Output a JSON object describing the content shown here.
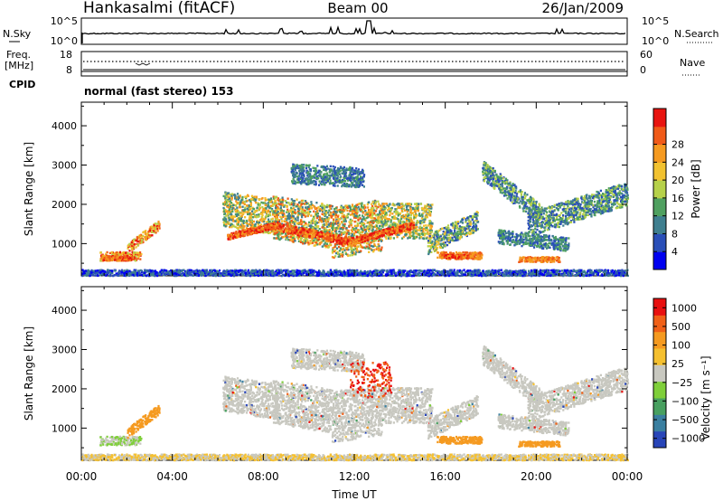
{
  "header": {
    "station": "Hankasalmi (fitACF)",
    "beam": "Beam 00",
    "date": "26/Jan/2009"
  },
  "top_panels": {
    "nsky_label": "N.Sky",
    "nsky_ticks": [
      "10^5",
      "10^0"
    ],
    "nsearch_label": "N.Search",
    "nsearch_ticks": [
      "10^5",
      "10^0"
    ],
    "freq_label_line1": "Freq.",
    "freq_label_line2": "[MHz]",
    "freq_ticks": [
      "18",
      "8"
    ],
    "nave_label": "Nave",
    "nave_ticks": [
      "60",
      "0"
    ],
    "cpid_label": "CPID",
    "cpid_text": "normal (fast stereo) 153"
  },
  "chart_data": [
    {
      "type": "heatmap",
      "name": "power-panel",
      "title": "",
      "xlabel": "",
      "ylabel": "Slant Range [km]",
      "xlim_hours": [
        0,
        24
      ],
      "ylim_km": [
        180,
        4600
      ],
      "yticks": [
        "1000",
        "2000",
        "3000",
        "4000"
      ],
      "colorbar": {
        "label": "Power [dB]",
        "ticks": [
          "4",
          "8",
          "12",
          "16",
          "20",
          "24",
          "28"
        ],
        "colors": [
          "#0000f0",
          "#2a4fb8",
          "#3f7f8f",
          "#4fa060",
          "#b6d14a",
          "#f2c230",
          "#f59a20",
          "#f05a18",
          "#e81410"
        ]
      }
    },
    {
      "type": "heatmap",
      "name": "velocity-panel",
      "title": "",
      "xlabel": "Time UT",
      "ylabel": "Slant Range [km]",
      "xlim_hours": [
        0,
        24
      ],
      "ylim_km": [
        180,
        4600
      ],
      "yticks": [
        "1000",
        "2000",
        "3000",
        "4000"
      ],
      "xticks": [
        "00:00",
        "04:00",
        "08:00",
        "12:00",
        "16:00",
        "20:00",
        "00:00"
      ],
      "colorbar": {
        "label": "Velocity [m s⁻¹]",
        "ticks": [
          "1000",
          "500",
          "100",
          "25",
          "−25",
          "−100",
          "−500",
          "−1000"
        ],
        "colors": [
          "#2845b8",
          "#3a7fa0",
          "#48a060",
          "#7fcf3a",
          "#c8c8c0",
          "#f5c030",
          "#f59a20",
          "#f06018",
          "#e81010"
        ]
      }
    }
  ]
}
